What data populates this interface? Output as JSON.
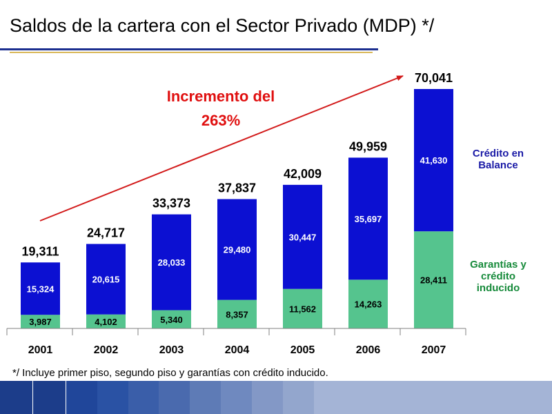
{
  "title": "Saldos de la cartera con el Sector Privado (MDP) */",
  "footnote": "*/ Incluye primer piso, segundo piso y garantías con crédito inducido.",
  "annotation": {
    "line1": "Incremento del",
    "line2": "263%"
  },
  "colors": {
    "credit_balance": "#0c10d2",
    "guarantees": "#55c48e",
    "annotation": "#e01010",
    "legend_credit": "#1a1aa6",
    "legend_guarantees": "#168a3a"
  },
  "chart_data": {
    "type": "bar",
    "stacked": true,
    "categories": [
      "2001",
      "2002",
      "2003",
      "2004",
      "2005",
      "2006",
      "2007"
    ],
    "series": [
      {
        "name": "Garantías y crédito inducido",
        "values": [
          3987,
          4102,
          5340,
          8357,
          11562,
          14263,
          28411
        ]
      },
      {
        "name": "Crédito en Balance",
        "values": [
          15324,
          20615,
          28033,
          29480,
          30447,
          35697,
          41630
        ]
      }
    ],
    "labels": {
      "guarantees": [
        "3,987",
        "4,102",
        "5,340",
        "8,357",
        "11,562",
        "14,263",
        "28,411"
      ],
      "credit": [
        "15,324",
        "20,615",
        "28,033",
        "29,480",
        "30,447",
        "35,697",
        "41,630"
      ],
      "totals": [
        "19,311",
        "24,717",
        "33,373",
        "37,837",
        "42,009",
        "49,959",
        "70,041"
      ]
    },
    "totals": [
      19311,
      24717,
      33373,
      37837,
      42009,
      49959,
      70041
    ],
    "legend": [
      {
        "series": "Crédito en Balance",
        "lines": [
          "Crédito en",
          "Balance"
        ]
      },
      {
        "series": "Garantías y crédito inducido",
        "lines": [
          "Garantías y",
          "crédito",
          "inducido"
        ]
      }
    ],
    "legend_position": "right",
    "ylim": [
      0,
      70041
    ],
    "grid": false
  },
  "footer_colors": [
    "#1c3d8a",
    "#1c3d8a",
    "#20469a",
    "#2a52a4",
    "#3a5ea9",
    "#4a6aae",
    "#5e7bb6",
    "#6f89bf",
    "#8398c6",
    "#93a6cd",
    "#a4b4d6"
  ]
}
